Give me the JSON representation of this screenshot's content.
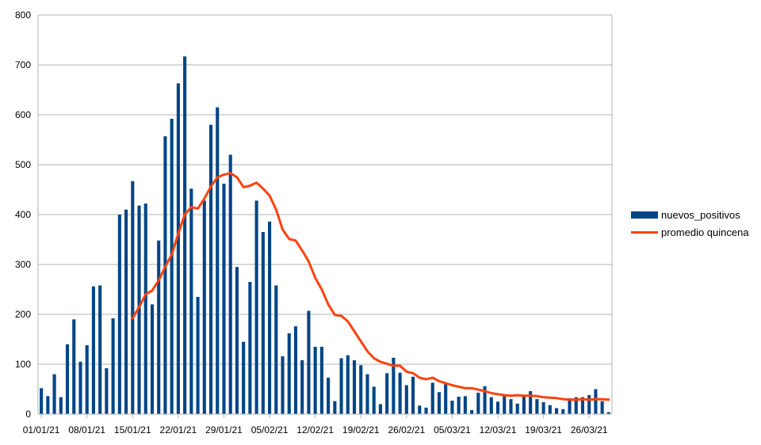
{
  "chart_data": {
    "type": "bar+line",
    "title": "",
    "xlabel": "",
    "ylabel": "",
    "ylim": [
      0,
      800
    ],
    "yticks": [
      0,
      100,
      200,
      300,
      400,
      500,
      600,
      700,
      800
    ],
    "grid": true,
    "legend_position": "right",
    "x_tick_labels": [
      "01/01/21",
      "08/01/21",
      "15/01/21",
      "22/01/21",
      "29/01/21",
      "05/02/21",
      "12/02/21",
      "19/02/21",
      "26/02/21",
      "05/03/21",
      "12/03/21",
      "19/03/21",
      "26/03/21"
    ],
    "x_start_date": "01/01/21",
    "series": [
      {
        "name": "nuevos_positivos",
        "kind": "bar",
        "color": "#004586",
        "values": [
          52,
          36,
          80,
          34,
          140,
          190,
          105,
          138,
          256,
          258,
          92,
          192,
          400,
          410,
          467,
          418,
          422,
          220,
          348,
          557,
          592,
          663,
          717,
          452,
          235,
          428,
          580,
          615,
          462,
          520,
          295,
          145,
          265,
          428,
          365,
          386,
          258,
          116,
          162,
          176,
          108,
          207,
          135,
          135,
          73,
          26,
          112,
          118,
          108,
          98,
          80,
          55,
          20,
          82,
          113,
          83,
          58,
          75,
          17,
          13,
          63,
          44,
          62,
          27,
          35,
          36,
          8,
          43,
          56,
          34,
          25,
          36,
          30,
          21,
          37,
          46,
          30,
          24,
          18,
          12,
          10,
          32,
          34,
          34,
          38,
          50,
          26,
          4
        ]
      },
      {
        "name": "promedio quincena",
        "kind": "line",
        "color": "#ff420e",
        "start_index": 14,
        "values": [
          192,
          215,
          240,
          248,
          268,
          295,
          320,
          362,
          400,
          415,
          412,
          432,
          456,
          475,
          480,
          483,
          475,
          455,
          458,
          464,
          452,
          438,
          410,
          370,
          351,
          348,
          328,
          306,
          273,
          250,
          220,
          199,
          197,
          186,
          166,
          146,
          126,
          112,
          105,
          101,
          97,
          97,
          85,
          82,
          73,
          70,
          73,
          66,
          62,
          58,
          55,
          52,
          52,
          49,
          46,
          42,
          40,
          38,
          37,
          38,
          37,
          37,
          36,
          34,
          33,
          32,
          30,
          29,
          29,
          30,
          29,
          30,
          30,
          29
        ]
      }
    ]
  },
  "legend": {
    "bar_label": "nuevos_positivos",
    "line_label": "promedio quincena"
  }
}
